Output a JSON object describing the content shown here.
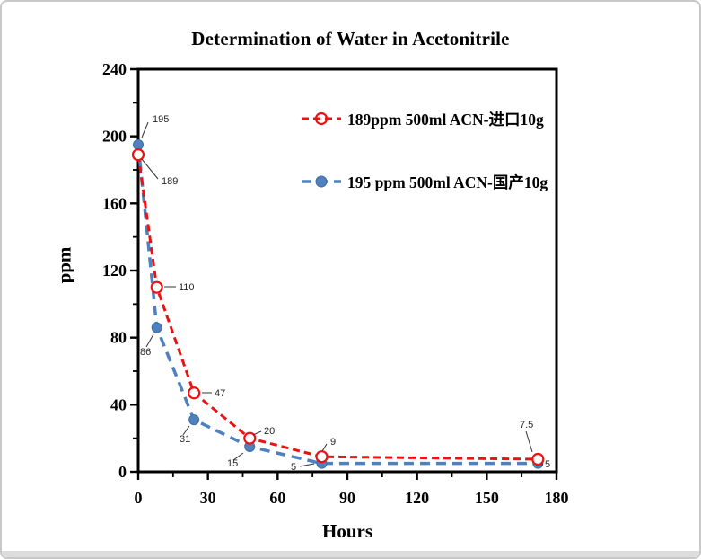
{
  "window": {
    "background": "#ffffff",
    "border_color": "#c8c8c8",
    "bottom_strip_color": "#dcdcdc"
  },
  "chart_data": {
    "type": "line",
    "title": "Determination of Water in Acetonitrile",
    "xlabel": "Hours",
    "ylabel": "ppm",
    "xlim": [
      0,
      180
    ],
    "ylim": [
      0,
      240
    ],
    "x_major_ticks": [
      0,
      30,
      60,
      90,
      120,
      150,
      180
    ],
    "x_minor_ticks": [
      15,
      45,
      75,
      105,
      135,
      165
    ],
    "y_major_ticks": [
      0,
      40,
      80,
      120,
      160,
      200,
      240
    ],
    "y_minor_ticks": [
      20,
      60,
      100,
      140,
      180,
      220
    ],
    "grid": false,
    "legend_position": "upper-right-inside",
    "frame_color": "#000000",
    "label_color": "#262626",
    "series": [
      {
        "name": "189ppm  500ml ACN-进口10g",
        "color": "#ee1111",
        "marker": "open-circle",
        "line_style": "dashed",
        "x": [
          0,
          8,
          24,
          48,
          79,
          172
        ],
        "y": [
          189,
          110,
          47,
          20,
          9,
          7.5
        ],
        "point_labels": [
          "189",
          "110",
          "47",
          "20",
          "9",
          "7.5"
        ]
      },
      {
        "name": "195 ppm 500ml ACN-国产10g",
        "color": "#4f81bd",
        "marker": "filled-circle",
        "line_style": "dashed",
        "x": [
          0,
          8,
          24,
          48,
          79,
          172
        ],
        "y": [
          195,
          86,
          31,
          15,
          5,
          5
        ],
        "point_labels": [
          "195",
          "86",
          "31",
          "15",
          "5",
          "5"
        ]
      }
    ]
  }
}
